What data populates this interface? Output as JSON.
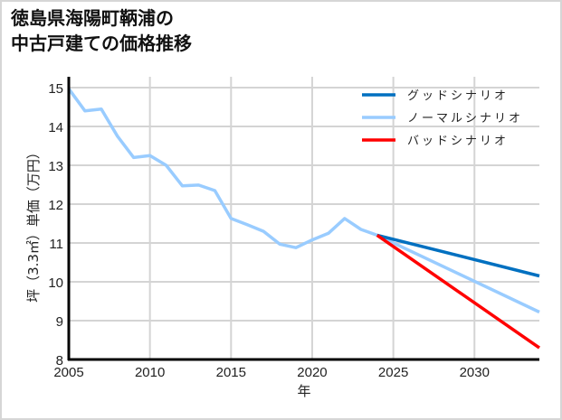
{
  "title": "徳島県海陽町鞆浦の\n中古戸建ての価格推移",
  "chart_data": {
    "type": "line",
    "title": "徳島県海陽町鞆浦の中古戸建ての価格推移",
    "xlabel": "年",
    "ylabel": "坪（3.3㎡）単価（万円）",
    "xlim": [
      2005,
      2034
    ],
    "ylim": [
      8,
      15
    ],
    "x_ticks": [
      2005,
      2010,
      2015,
      2020,
      2025,
      2030
    ],
    "y_ticks": [
      8,
      9,
      10,
      11,
      12,
      13,
      14,
      15
    ],
    "grid": true,
    "legend_position": "upper right",
    "series": [
      {
        "name": "ノーマルシナリオ",
        "color": "#99ccff",
        "x": [
          2005,
          2006,
          2007,
          2008,
          2009,
          2010,
          2011,
          2012,
          2013,
          2014,
          2015,
          2016,
          2017,
          2018,
          2019,
          2020,
          2021,
          2022,
          2023,
          2024,
          2034
        ],
        "values": [
          14.97,
          14.4,
          14.45,
          13.75,
          13.2,
          13.25,
          13.0,
          12.47,
          12.49,
          12.35,
          11.63,
          11.47,
          11.3,
          10.97,
          10.88,
          11.08,
          11.25,
          11.63,
          11.35,
          11.2,
          9.22
        ]
      },
      {
        "name": "グッドシナリオ",
        "color": "#0070c0",
        "x": [
          2024,
          2034
        ],
        "values": [
          11.2,
          10.15
        ]
      },
      {
        "name": "バッドシナリオ",
        "color": "#ff0000",
        "x": [
          2024,
          2034
        ],
        "values": [
          11.2,
          8.3
        ]
      }
    ]
  },
  "legend": [
    {
      "label": "グッドシナリオ",
      "color": "#0070c0"
    },
    {
      "label": "ノーマルシナリオ",
      "color": "#99ccff"
    },
    {
      "label": "バッドシナリオ",
      "color": "#ff0000"
    }
  ],
  "axis": {
    "xlabel": "年",
    "ylabel": "坪（3.3㎡）単価（万円）"
  }
}
